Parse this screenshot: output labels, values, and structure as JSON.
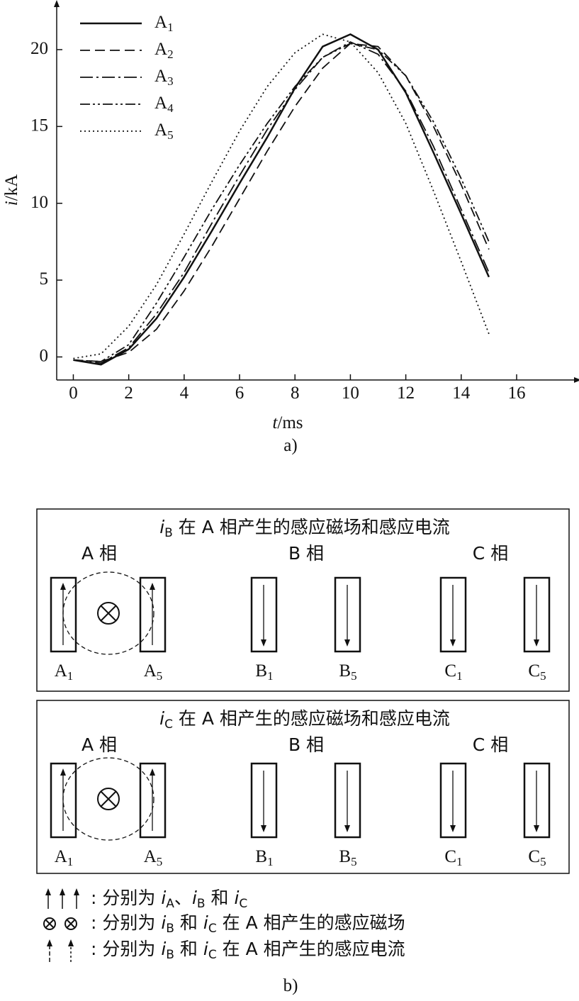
{
  "chart_data": {
    "type": "line",
    "xlabel": "t/ms",
    "ylabel": "i/kA",
    "caption": "a)",
    "xlim": [
      -0.6,
      18.2
    ],
    "ylim": [
      -1.5,
      23
    ],
    "xticks": [
      0,
      2,
      4,
      6,
      8,
      10,
      12,
      14,
      16
    ],
    "yticks": [
      0,
      5,
      10,
      15,
      20
    ],
    "x": [
      0,
      1,
      2,
      3,
      4,
      5,
      6,
      7,
      8,
      9,
      10,
      11,
      12,
      13,
      14,
      15
    ],
    "series": [
      {
        "name": "A1",
        "color": "#111111",
        "style": "solid",
        "values": [
          -0.2,
          -0.5,
          0.5,
          2.5,
          5.2,
          8.2,
          11.3,
          14.3,
          17.5,
          20.2,
          21.0,
          20.0,
          17.2,
          13.3,
          9.3,
          5.2
        ]
      },
      {
        "name": "A2",
        "color": "#111111",
        "style": "dashed",
        "values": [
          -0.2,
          -0.3,
          0.3,
          1.8,
          4.3,
          7.2,
          10.3,
          13.4,
          16.3,
          18.8,
          20.4,
          20.2,
          18.3,
          15.0,
          11.2,
          7.0
        ]
      },
      {
        "name": "A3",
        "color": "#111111",
        "style": "dashdot",
        "values": [
          -0.2,
          -0.4,
          0.6,
          2.8,
          5.5,
          8.7,
          11.8,
          14.8,
          17.4,
          19.5,
          20.5,
          19.7,
          17.3,
          13.7,
          9.6,
          5.5
        ]
      },
      {
        "name": "A4",
        "color": "#111111",
        "style": "dashdotdot",
        "values": [
          -0.2,
          -0.3,
          0.8,
          3.5,
          6.5,
          9.6,
          12.5,
          15.2,
          17.6,
          19.5,
          20.4,
          20.0,
          18.3,
          15.3,
          11.6,
          7.5
        ]
      },
      {
        "name": "A5",
        "color": "#111111",
        "style": "dotted",
        "values": [
          -0.1,
          0.2,
          2.0,
          4.7,
          8.0,
          11.4,
          14.7,
          17.6,
          19.8,
          21.0,
          20.5,
          18.5,
          15.2,
          10.8,
          6.2,
          1.5
        ]
      }
    ]
  },
  "diagram": {
    "panels": [
      {
        "title": "iB 在 A 相产生的感应磁场和感应电流",
        "phases": [
          "A 相",
          "B 相",
          "C 相"
        ],
        "coils": [
          "A1",
          "A5",
          "B1",
          "B5",
          "C1",
          "C5"
        ]
      },
      {
        "title": "iC 在 A 相产生的感应磁场和感应电流",
        "phases": [
          "A 相",
          "B 相",
          "C 相"
        ],
        "coils": [
          "A1",
          "A5",
          "B1",
          "B5",
          "C1",
          "C5"
        ]
      }
    ],
    "legend": [
      ": 分别为 iA、iB 和 iC",
      ": 分别为 iB 和 iC 在 A 相产生的感应磁场",
      ": 分别为 iB 和 iC 在 A 相产生的感应电流"
    ],
    "caption": "b)"
  }
}
